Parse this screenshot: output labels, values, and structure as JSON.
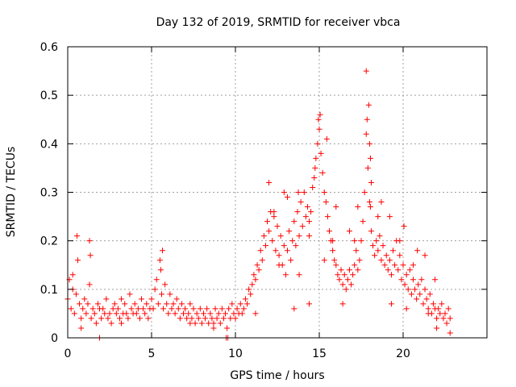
{
  "chart_data": {
    "type": "scatter",
    "title": "Day 132 of 2019, SRMTID for receiver vbca",
    "xlabel": "GPS time / hours",
    "ylabel": "SRMTID / TECUs",
    "xlim": [
      0,
      25
    ],
    "ylim": [
      0,
      0.6
    ],
    "x_ticks": [
      "0",
      "5",
      "10",
      "15",
      "20"
    ],
    "y_ticks": [
      "0",
      "0.1",
      "0.2",
      "0.3",
      "0.4",
      "0.5",
      "0.6"
    ],
    "grid": true,
    "marker": "+",
    "color": "#ff0000",
    "series": [
      {
        "name": "SRMTID",
        "points": [
          [
            0.0,
            0.08
          ],
          [
            0.1,
            0.12
          ],
          [
            0.2,
            0.06
          ],
          [
            0.3,
            0.1
          ],
          [
            0.4,
            0.05
          ],
          [
            0.5,
            0.09
          ],
          [
            0.6,
            0.16
          ],
          [
            0.7,
            0.07
          ],
          [
            0.8,
            0.04
          ],
          [
            0.9,
            0.06
          ],
          [
            1.0,
            0.08
          ],
          [
            1.1,
            0.05
          ],
          [
            1.2,
            0.07
          ],
          [
            1.3,
            0.11
          ],
          [
            1.4,
            0.04
          ],
          [
            1.5,
            0.06
          ],
          [
            1.6,
            0.05
          ],
          [
            1.7,
            0.03
          ],
          [
            1.8,
            0.07
          ],
          [
            1.9,
            0.06
          ],
          [
            2.0,
            0.04
          ],
          [
            2.1,
            0.06
          ],
          [
            2.2,
            0.05
          ],
          [
            2.3,
            0.08
          ],
          [
            2.4,
            0.04
          ],
          [
            2.5,
            0.05
          ],
          [
            2.6,
            0.03
          ],
          [
            2.7,
            0.06
          ],
          [
            2.8,
            0.07
          ],
          [
            2.9,
            0.05
          ],
          [
            3.0,
            0.06
          ],
          [
            3.1,
            0.04
          ],
          [
            3.2,
            0.08
          ],
          [
            3.3,
            0.05
          ],
          [
            3.4,
            0.07
          ],
          [
            3.5,
            0.05
          ],
          [
            3.6,
            0.04
          ],
          [
            3.7,
            0.09
          ],
          [
            3.8,
            0.06
          ],
          [
            3.9,
            0.05
          ],
          [
            4.0,
            0.07
          ],
          [
            4.1,
            0.05
          ],
          [
            4.2,
            0.06
          ],
          [
            4.3,
            0.04
          ],
          [
            4.4,
            0.08
          ],
          [
            4.5,
            0.06
          ],
          [
            4.6,
            0.05
          ],
          [
            4.7,
            0.07
          ],
          [
            4.8,
            0.04
          ],
          [
            4.9,
            0.06
          ],
          [
            5.0,
            0.08
          ],
          [
            5.1,
            0.06
          ],
          [
            5.2,
            0.1
          ],
          [
            5.3,
            0.12
          ],
          [
            5.4,
            0.07
          ],
          [
            5.5,
            0.16
          ],
          [
            5.6,
            0.09
          ],
          [
            5.7,
            0.06
          ],
          [
            5.8,
            0.11
          ],
          [
            5.9,
            0.07
          ],
          [
            6.0,
            0.05
          ],
          [
            6.1,
            0.09
          ],
          [
            6.2,
            0.06
          ],
          [
            6.3,
            0.07
          ],
          [
            6.4,
            0.05
          ],
          [
            6.5,
            0.08
          ],
          [
            6.6,
            0.06
          ],
          [
            6.7,
            0.04
          ],
          [
            6.8,
            0.07
          ],
          [
            6.9,
            0.05
          ],
          [
            7.0,
            0.06
          ],
          [
            7.1,
            0.04
          ],
          [
            7.2,
            0.05
          ],
          [
            7.3,
            0.07
          ],
          [
            7.4,
            0.04
          ],
          [
            7.5,
            0.06
          ],
          [
            7.6,
            0.03
          ],
          [
            7.7,
            0.05
          ],
          [
            7.8,
            0.04
          ],
          [
            7.9,
            0.06
          ],
          [
            8.0,
            0.03
          ],
          [
            8.1,
            0.05
          ],
          [
            8.2,
            0.04
          ],
          [
            8.3,
            0.06
          ],
          [
            8.4,
            0.03
          ],
          [
            8.5,
            0.05
          ],
          [
            8.6,
            0.04
          ],
          [
            8.7,
            0.03
          ],
          [
            8.8,
            0.06
          ],
          [
            8.9,
            0.04
          ],
          [
            9.0,
            0.05
          ],
          [
            9.1,
            0.03
          ],
          [
            9.2,
            0.06
          ],
          [
            9.3,
            0.04
          ],
          [
            9.4,
            0.05
          ],
          [
            9.5,
            0.02
          ],
          [
            9.6,
            0.06
          ],
          [
            9.7,
            0.04
          ],
          [
            9.8,
            0.07
          ],
          [
            9.9,
            0.05
          ],
          [
            10.0,
            0.04
          ],
          [
            10.1,
            0.06
          ],
          [
            10.2,
            0.05
          ],
          [
            10.3,
            0.07
          ],
          [
            10.4,
            0.05
          ],
          [
            10.5,
            0.06
          ],
          [
            10.6,
            0.08
          ],
          [
            10.7,
            0.07
          ],
          [
            10.8,
            0.1
          ],
          [
            10.9,
            0.09
          ],
          [
            11.0,
            0.11
          ],
          [
            11.1,
            0.13
          ],
          [
            11.2,
            0.12
          ],
          [
            11.3,
            0.15
          ],
          [
            11.4,
            0.14
          ],
          [
            11.5,
            0.18
          ],
          [
            11.6,
            0.16
          ],
          [
            11.7,
            0.21
          ],
          [
            11.8,
            0.19
          ],
          [
            11.9,
            0.24
          ],
          [
            12.0,
            0.22
          ],
          [
            12.1,
            0.26
          ],
          [
            12.2,
            0.2
          ],
          [
            12.3,
            0.25
          ],
          [
            12.4,
            0.18
          ],
          [
            12.5,
            0.23
          ],
          [
            12.6,
            0.17
          ],
          [
            12.7,
            0.21
          ],
          [
            12.8,
            0.15
          ],
          [
            12.9,
            0.19
          ],
          [
            13.0,
            0.13
          ],
          [
            13.1,
            0.18
          ],
          [
            13.2,
            0.22
          ],
          [
            13.3,
            0.16
          ],
          [
            13.4,
            0.2
          ],
          [
            13.5,
            0.24
          ],
          [
            13.6,
            0.19
          ],
          [
            13.7,
            0.26
          ],
          [
            13.8,
            0.21
          ],
          [
            13.9,
            0.28
          ],
          [
            14.0,
            0.23
          ],
          [
            14.1,
            0.3
          ],
          [
            14.2,
            0.25
          ],
          [
            14.3,
            0.27
          ],
          [
            14.4,
            0.21
          ],
          [
            14.5,
            0.26
          ],
          [
            14.6,
            0.31
          ],
          [
            14.7,
            0.33
          ],
          [
            14.8,
            0.37
          ],
          [
            14.9,
            0.4
          ],
          [
            15.0,
            0.43
          ],
          [
            15.1,
            0.38
          ],
          [
            15.2,
            0.34
          ],
          [
            15.3,
            0.3
          ],
          [
            15.4,
            0.28
          ],
          [
            15.5,
            0.25
          ],
          [
            15.6,
            0.22
          ],
          [
            15.7,
            0.2
          ],
          [
            15.8,
            0.18
          ],
          [
            15.9,
            0.16
          ],
          [
            16.0,
            0.15
          ],
          [
            16.1,
            0.13
          ],
          [
            16.2,
            0.12
          ],
          [
            16.3,
            0.14
          ],
          [
            16.4,
            0.11
          ],
          [
            16.5,
            0.13
          ],
          [
            16.6,
            0.1
          ],
          [
            16.7,
            0.12
          ],
          [
            16.8,
            0.14
          ],
          [
            16.9,
            0.11
          ],
          [
            17.0,
            0.13
          ],
          [
            17.1,
            0.15
          ],
          [
            17.2,
            0.18
          ],
          [
            17.3,
            0.14
          ],
          [
            17.4,
            0.16
          ],
          [
            17.5,
            0.2
          ],
          [
            17.6,
            0.24
          ],
          [
            17.7,
            0.3
          ],
          [
            17.8,
            0.42
          ],
          [
            17.9,
            0.35
          ],
          [
            18.0,
            0.28
          ],
          [
            18.1,
            0.22
          ],
          [
            18.2,
            0.19
          ],
          [
            18.3,
            0.17
          ],
          [
            18.4,
            0.2
          ],
          [
            18.5,
            0.18
          ],
          [
            18.6,
            0.21
          ],
          [
            18.7,
            0.16
          ],
          [
            18.8,
            0.19
          ],
          [
            18.9,
            0.15
          ],
          [
            19.0,
            0.17
          ],
          [
            19.1,
            0.14
          ],
          [
            19.2,
            0.16
          ],
          [
            19.3,
            0.13
          ],
          [
            19.4,
            0.18
          ],
          [
            19.5,
            0.15
          ],
          [
            19.6,
            0.2
          ],
          [
            19.7,
            0.14
          ],
          [
            19.8,
            0.17
          ],
          [
            19.9,
            0.12
          ],
          [
            20.0,
            0.15
          ],
          [
            20.1,
            0.11
          ],
          [
            20.2,
            0.13
          ],
          [
            20.3,
            0.1
          ],
          [
            20.4,
            0.14
          ],
          [
            20.5,
            0.09
          ],
          [
            20.6,
            0.12
          ],
          [
            20.7,
            0.1
          ],
          [
            20.8,
            0.08
          ],
          [
            20.9,
            0.11
          ],
          [
            21.0,
            0.09
          ],
          [
            21.1,
            0.12
          ],
          [
            21.2,
            0.07
          ],
          [
            21.3,
            0.1
          ],
          [
            21.4,
            0.08
          ],
          [
            21.5,
            0.06
          ],
          [
            21.6,
            0.09
          ],
          [
            21.7,
            0.05
          ],
          [
            21.8,
            0.07
          ],
          [
            21.9,
            0.06
          ],
          [
            22.0,
            0.04
          ],
          [
            22.1,
            0.06
          ],
          [
            22.2,
            0.05
          ],
          [
            22.3,
            0.07
          ],
          [
            22.4,
            0.04
          ],
          [
            22.5,
            0.05
          ],
          [
            22.6,
            0.03
          ],
          [
            22.7,
            0.06
          ],
          [
            22.8,
            0.04
          ],
          [
            0.3,
            0.13
          ],
          [
            0.55,
            0.21
          ],
          [
            1.3,
            0.2
          ],
          [
            1.35,
            0.17
          ],
          [
            5.65,
            0.18
          ],
          [
            5.55,
            0.14
          ],
          [
            14.95,
            0.45
          ],
          [
            15.05,
            0.46
          ],
          [
            15.45,
            0.41
          ],
          [
            14.75,
            0.35
          ],
          [
            13.75,
            0.3
          ],
          [
            12.0,
            0.32
          ],
          [
            17.8,
            0.55
          ],
          [
            17.95,
            0.48
          ],
          [
            17.85,
            0.45
          ],
          [
            18.0,
            0.4
          ],
          [
            18.05,
            0.37
          ],
          [
            18.1,
            0.32
          ],
          [
            18.05,
            0.27
          ],
          [
            19.2,
            0.25
          ],
          [
            20.05,
            0.23
          ],
          [
            17.3,
            0.27
          ],
          [
            18.7,
            0.28
          ],
          [
            16.0,
            0.27
          ],
          [
            21.3,
            0.17
          ],
          [
            20.85,
            0.18
          ],
          [
            1.9,
            0.0
          ],
          [
            9.55,
            0.0
          ],
          [
            9.45,
            0.0
          ],
          [
            15.8,
            0.2
          ],
          [
            14.4,
            0.24
          ],
          [
            13.1,
            0.29
          ],
          [
            12.9,
            0.3
          ],
          [
            12.3,
            0.26
          ],
          [
            11.2,
            0.05
          ],
          [
            13.5,
            0.06
          ],
          [
            14.4,
            0.07
          ],
          [
            16.4,
            0.07
          ],
          [
            19.3,
            0.07
          ],
          [
            20.2,
            0.06
          ],
          [
            21.5,
            0.05
          ],
          [
            22.0,
            0.02
          ],
          [
            22.8,
            0.01
          ],
          [
            0.8,
            0.02
          ],
          [
            3.2,
            0.03
          ],
          [
            8.7,
            0.02
          ],
          [
            7.3,
            0.03
          ],
          [
            12.6,
            0.15
          ],
          [
            13.8,
            0.13
          ],
          [
            15.3,
            0.16
          ],
          [
            16.8,
            0.22
          ],
          [
            17.1,
            0.2
          ],
          [
            18.5,
            0.25
          ],
          [
            19.8,
            0.2
          ],
          [
            20.6,
            0.15
          ],
          [
            21.9,
            0.12
          ]
        ]
      }
    ]
  }
}
